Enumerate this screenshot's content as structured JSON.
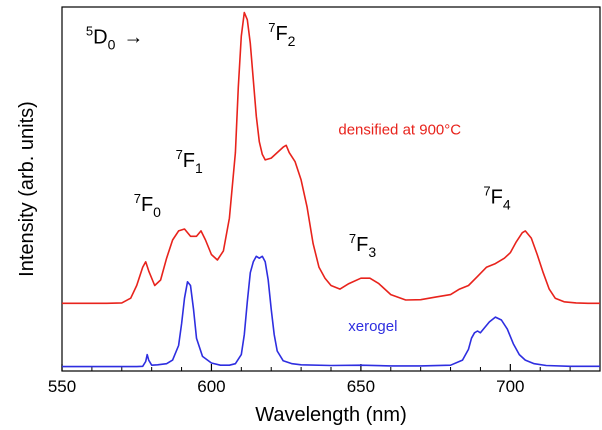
{
  "chart_data": {
    "type": "line",
    "title": "",
    "xlabel": "Wavelength (nm)",
    "ylabel": "Intensity (arb. units)",
    "xlim": [
      550,
      730
    ],
    "ylim": [
      0,
      1
    ],
    "x_ticks": [
      550,
      600,
      650,
      700
    ],
    "y_ticks": [],
    "grid": false,
    "legend": "none",
    "series": [
      {
        "name": "densified at 900°C",
        "color": "#e8231c",
        "points": [
          [
            550,
            0.186
          ],
          [
            555,
            0.186
          ],
          [
            560,
            0.186
          ],
          [
            565,
            0.186
          ],
          [
            570,
            0.187
          ],
          [
            573,
            0.2
          ],
          [
            575,
            0.235
          ],
          [
            577,
            0.285
          ],
          [
            578,
            0.3
          ],
          [
            579,
            0.275
          ],
          [
            581,
            0.235
          ],
          [
            583,
            0.25
          ],
          [
            585,
            0.31
          ],
          [
            587,
            0.36
          ],
          [
            589,
            0.385
          ],
          [
            591,
            0.39
          ],
          [
            593,
            0.37
          ],
          [
            595,
            0.37
          ],
          [
            596.5,
            0.385
          ],
          [
            598,
            0.36
          ],
          [
            600,
            0.32
          ],
          [
            602,
            0.305
          ],
          [
            604,
            0.33
          ],
          [
            606,
            0.42
          ],
          [
            608,
            0.6
          ],
          [
            609,
            0.78
          ],
          [
            610,
            0.92
          ],
          [
            611,
            0.985
          ],
          [
            612,
            0.965
          ],
          [
            613,
            0.9
          ],
          [
            614,
            0.8
          ],
          [
            615,
            0.7
          ],
          [
            616,
            0.63
          ],
          [
            617,
            0.595
          ],
          [
            618,
            0.58
          ],
          [
            620,
            0.585
          ],
          [
            622,
            0.6
          ],
          [
            624,
            0.615
          ],
          [
            625,
            0.62
          ],
          [
            626,
            0.6
          ],
          [
            628,
            0.575
          ],
          [
            630,
            0.525
          ],
          [
            632,
            0.45
          ],
          [
            634,
            0.35
          ],
          [
            636,
            0.285
          ],
          [
            638,
            0.255
          ],
          [
            640,
            0.235
          ],
          [
            643,
            0.225
          ],
          [
            646,
            0.24
          ],
          [
            650,
            0.255
          ],
          [
            653,
            0.255
          ],
          [
            656,
            0.24
          ],
          [
            660,
            0.21
          ],
          [
            665,
            0.195
          ],
          [
            670,
            0.196
          ],
          [
            675,
            0.203
          ],
          [
            680,
            0.21
          ],
          [
            683,
            0.225
          ],
          [
            686,
            0.235
          ],
          [
            689,
            0.26
          ],
          [
            692,
            0.285
          ],
          [
            695,
            0.295
          ],
          [
            698,
            0.31
          ],
          [
            700,
            0.325
          ],
          [
            702,
            0.355
          ],
          [
            704,
            0.38
          ],
          [
            705,
            0.385
          ],
          [
            707,
            0.365
          ],
          [
            709,
            0.32
          ],
          [
            711,
            0.27
          ],
          [
            713,
            0.225
          ],
          [
            715,
            0.2
          ],
          [
            718,
            0.19
          ],
          [
            722,
            0.187
          ],
          [
            726,
            0.186
          ],
          [
            730,
            0.186
          ]
        ]
      },
      {
        "name": "xerogel",
        "color": "#2e2ee0",
        "points": [
          [
            550,
            0.012
          ],
          [
            555,
            0.012
          ],
          [
            560,
            0.012
          ],
          [
            565,
            0.012
          ],
          [
            570,
            0.012
          ],
          [
            575,
            0.012
          ],
          [
            577,
            0.013
          ],
          [
            578,
            0.026
          ],
          [
            578.5,
            0.045
          ],
          [
            579,
            0.03
          ],
          [
            580,
            0.016
          ],
          [
            582,
            0.017
          ],
          [
            585,
            0.02
          ],
          [
            587,
            0.03
          ],
          [
            589,
            0.07
          ],
          [
            590,
            0.13
          ],
          [
            591,
            0.2
          ],
          [
            592,
            0.245
          ],
          [
            593,
            0.235
          ],
          [
            594,
            0.17
          ],
          [
            595,
            0.09
          ],
          [
            597,
            0.04
          ],
          [
            600,
            0.022
          ],
          [
            603,
            0.016
          ],
          [
            606,
            0.016
          ],
          [
            608,
            0.02
          ],
          [
            610,
            0.045
          ],
          [
            611,
            0.1
          ],
          [
            612,
            0.19
          ],
          [
            613,
            0.27
          ],
          [
            614,
            0.3
          ],
          [
            615,
            0.315
          ],
          [
            616,
            0.31
          ],
          [
            617,
            0.315
          ],
          [
            618,
            0.3
          ],
          [
            619,
            0.25
          ],
          [
            620,
            0.17
          ],
          [
            621,
            0.1
          ],
          [
            622,
            0.055
          ],
          [
            624,
            0.028
          ],
          [
            627,
            0.02
          ],
          [
            630,
            0.017
          ],
          [
            640,
            0.015
          ],
          [
            650,
            0.016
          ],
          [
            660,
            0.014
          ],
          [
            670,
            0.014
          ],
          [
            680,
            0.016
          ],
          [
            684,
            0.03
          ],
          [
            686,
            0.06
          ],
          [
            687,
            0.09
          ],
          [
            688,
            0.105
          ],
          [
            689,
            0.11
          ],
          [
            690,
            0.105
          ],
          [
            691,
            0.115
          ],
          [
            693,
            0.135
          ],
          [
            695,
            0.148
          ],
          [
            697,
            0.14
          ],
          [
            699,
            0.115
          ],
          [
            701,
            0.075
          ],
          [
            703,
            0.045
          ],
          [
            705,
            0.03
          ],
          [
            708,
            0.02
          ],
          [
            712,
            0.015
          ],
          [
            720,
            0.013
          ],
          [
            730,
            0.013
          ]
        ]
      }
    ],
    "annotations": {
      "transition_5d0": {
        "sup": "5",
        "base": "D",
        "sub": "0",
        "arrow": "→",
        "x": 558,
        "y": 0.9
      },
      "f0": {
        "sup": "7",
        "base": "F",
        "sub": "0",
        "x": 574,
        "y": 0.44
      },
      "f1": {
        "sup": "7",
        "base": "F",
        "sub": "1",
        "x": 588,
        "y": 0.56
      },
      "f2": {
        "sup": "7",
        "base": "F",
        "sub": "2",
        "x": 619,
        "y": 0.91
      },
      "f3": {
        "sup": "7",
        "base": "F",
        "sub": "3",
        "x": 646,
        "y": 0.33
      },
      "f4": {
        "sup": "7",
        "base": "F",
        "sub": "4",
        "x": 691,
        "y": 0.46
      }
    },
    "series_labels": {
      "densified": {
        "x": 663,
        "y": 0.65
      },
      "xerogel": {
        "x": 654,
        "y": 0.11
      }
    }
  }
}
